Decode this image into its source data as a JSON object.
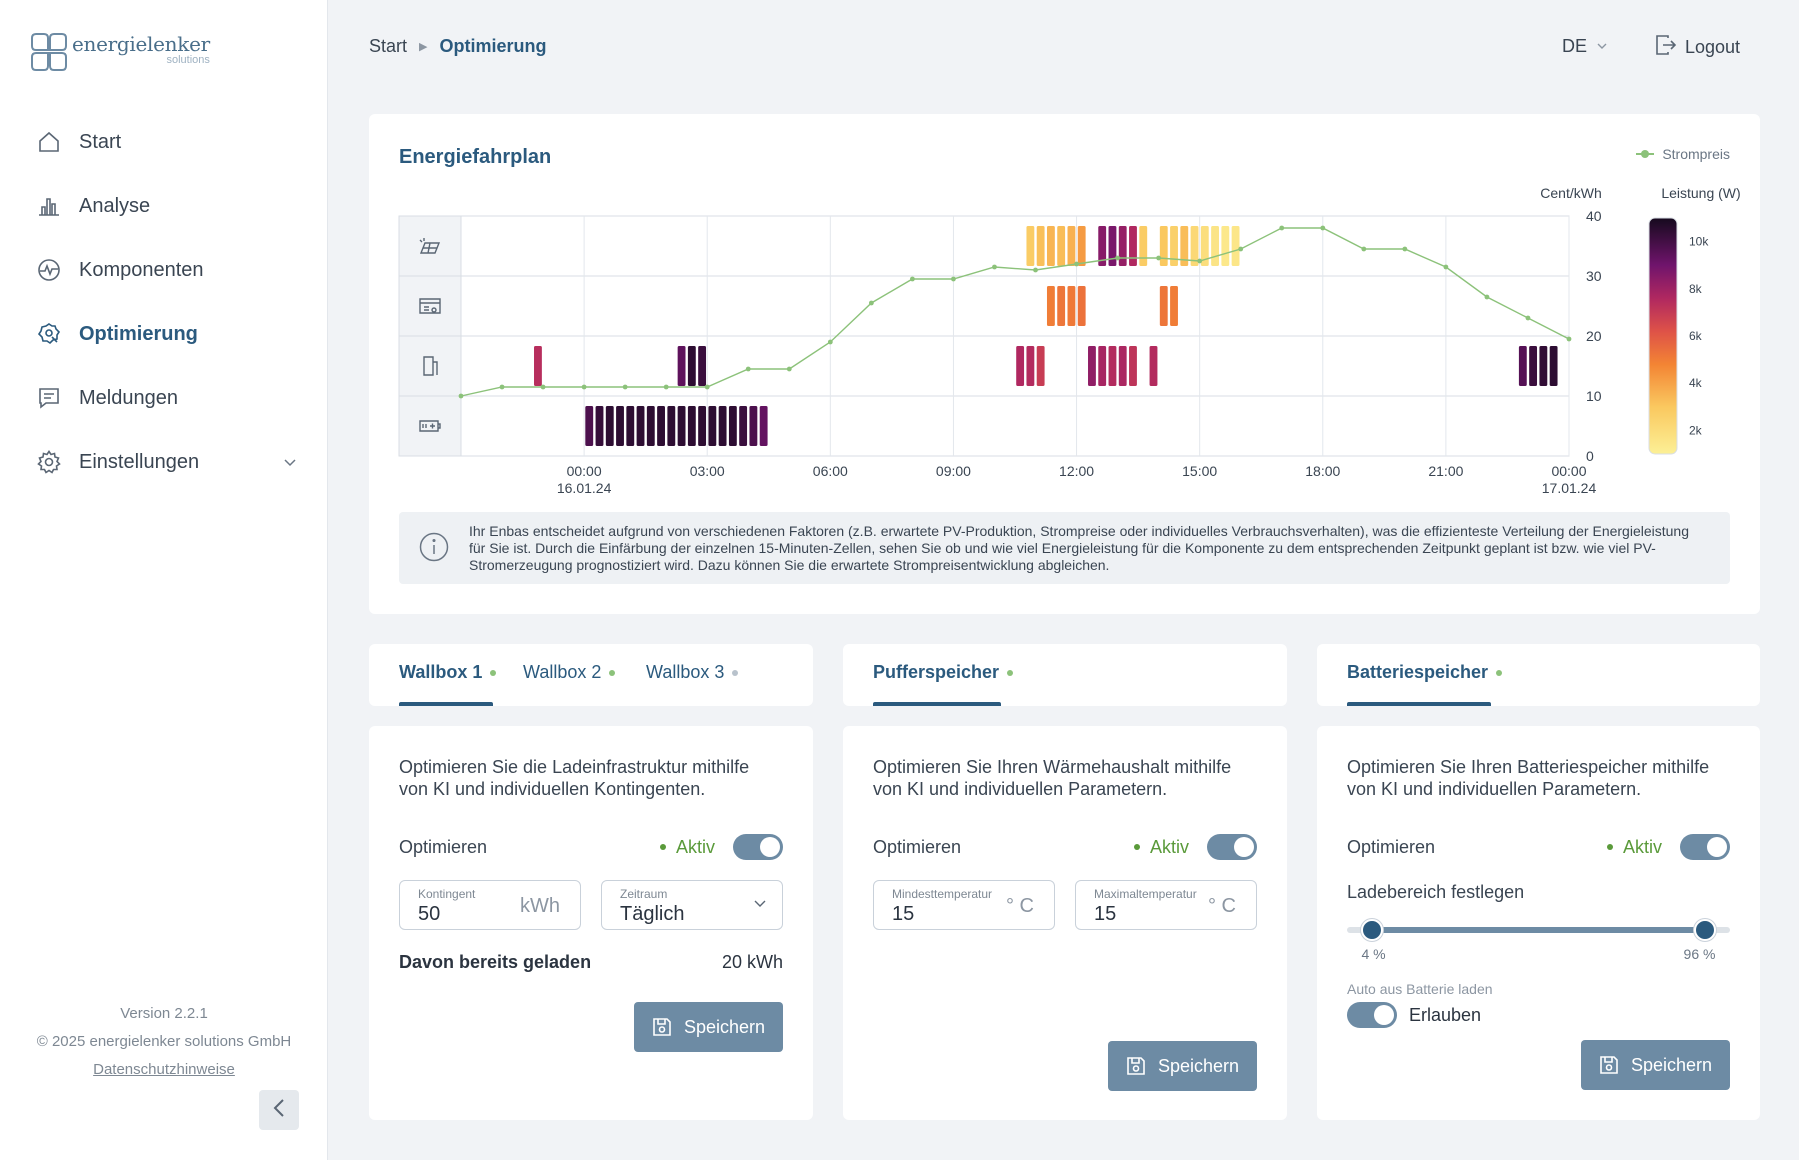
{
  "app": {
    "logo_name": "energielenker",
    "logo_sub": "solutions"
  },
  "sidebar": {
    "items": [
      {
        "label": "Start",
        "icon": "home-icon"
      },
      {
        "label": "Analyse",
        "icon": "bar-chart-icon"
      },
      {
        "label": "Komponenten",
        "icon": "pulse-icon"
      },
      {
        "label": "Optimierung",
        "icon": "gear-optimize-icon",
        "active": true
      },
      {
        "label": "Meldungen",
        "icon": "message-icon"
      },
      {
        "label": "Einstellungen",
        "icon": "settings-icon"
      }
    ],
    "version": "Version 2.2.1",
    "copyright": "© 2025 energielenker solutions GmbH",
    "privacy": "Datenschutzhinweise"
  },
  "header": {
    "breadcrumb": [
      "Start",
      "Optimierung"
    ],
    "language": "DE",
    "logout": "Logout"
  },
  "schedule": {
    "title": "Energiefahrplan",
    "legend_price": "Strompreis",
    "y_right_label": "Cent/kWh",
    "colorbar_label": "Leistung (W)",
    "info_text": "Ihr Enbas entscheidet aufgrund von verschiedenen Faktoren (z.B. erwartete PV-Produktion, Strompreise oder individuelles Verbrauchsverhalten), was die effizienteste Verteilung der Energieleistung für Sie ist. Durch die Einfärbung der einzelnen 15-Minuten-Zellen, sehen Sie ob und wie viel Energieleistung für die Komponente zu dem entsprechenden Zeitpunkt geplant ist bzw. wie viel PV-Stromerzeugung prognostiziert wird. Dazu können Sie die erwartete Strompreisentwicklung abgleichen."
  },
  "chart_data": {
    "type": "heatmap",
    "title": "Energiefahrplan",
    "rows": [
      "pv-production",
      "heat-storage",
      "wallbox",
      "battery"
    ],
    "row_icons": [
      "solar-panel-icon",
      "heat-buffer-icon",
      "wallbox-icon",
      "battery-icon"
    ],
    "x_hours_range": [
      -3,
      24
    ],
    "x_ticks": [
      {
        "h": 0,
        "label": "00:00",
        "sub": "16.01.24"
      },
      {
        "h": 3,
        "label": "03:00",
        "sub": ""
      },
      {
        "h": 6,
        "label": "06:00",
        "sub": ""
      },
      {
        "h": 9,
        "label": "09:00",
        "sub": ""
      },
      {
        "h": 12,
        "label": "12:00",
        "sub": ""
      },
      {
        "h": 15,
        "label": "15:00",
        "sub": ""
      },
      {
        "h": 18,
        "label": "18:00",
        "sub": ""
      },
      {
        "h": 21,
        "label": "21:00",
        "sub": ""
      },
      {
        "h": 24,
        "label": "00:00",
        "sub": "17.01.24"
      }
    ],
    "y_price_ticks": [
      0,
      10,
      20,
      30,
      40
    ],
    "ylim": [
      0,
      40
    ],
    "colorbar_ticks": [
      {
        "v": 10000,
        "label": "10k"
      },
      {
        "v": 8000,
        "label": "8k"
      },
      {
        "v": 6000,
        "label": "6k"
      },
      {
        "v": 4000,
        "label": "4k"
      },
      {
        "v": 2000,
        "label": "2k"
      }
    ],
    "colorbar_range": [
      1000,
      11000
    ],
    "price_series": {
      "name": "Strompreis",
      "x": [
        -3,
        -2,
        -1,
        0,
        1,
        2,
        3,
        4,
        5,
        6,
        7,
        8,
        9,
        10,
        11,
        12,
        13,
        14,
        15,
        16,
        17,
        18,
        19,
        20,
        21,
        22,
        23,
        24
      ],
      "y": [
        10,
        11.5,
        11.5,
        11.5,
        11.5,
        11.5,
        11.5,
        14.5,
        14.5,
        19,
        25.5,
        29.5,
        29.5,
        31.5,
        31,
        32,
        33,
        33,
        32.5,
        34.5,
        38,
        38,
        34.5,
        34.5,
        31.5,
        26.5,
        23,
        19.5
      ]
    },
    "cells": [
      {
        "row": 0,
        "start": 10.75,
        "count": 6,
        "values": [
          2800,
          3200,
          3500,
          3300,
          3600,
          4200
        ]
      },
      {
        "row": 0,
        "start": 12.5,
        "count": 4,
        "values": [
          8500,
          8800,
          8200,
          7600
        ]
      },
      {
        "row": 0,
        "start": 13.5,
        "count": 1,
        "values": [
          2800
        ]
      },
      {
        "row": 0,
        "start": 14.0,
        "count": 8,
        "values": [
          3000,
          2600,
          3300,
          2200,
          1900,
          1600,
          1400,
          1500
        ]
      },
      {
        "row": 1,
        "start": 11.25,
        "count": 4,
        "values": [
          5000,
          5200,
          5100,
          5300
        ]
      },
      {
        "row": 1,
        "start": 14.0,
        "count": 2,
        "values": [
          5200,
          5000
        ]
      },
      {
        "row": 2,
        "start": -1.25,
        "count": 1,
        "values": [
          7400
        ]
      },
      {
        "row": 2,
        "start": 2.25,
        "count": 3,
        "values": [
          9400,
          10500,
          10200
        ]
      },
      {
        "row": 2,
        "start": 10.5,
        "count": 3,
        "values": [
          7600,
          7500,
          6900
        ]
      },
      {
        "row": 2,
        "start": 12.25,
        "count": 5,
        "values": [
          8300,
          7800,
          7500,
          7700,
          7200
        ]
      },
      {
        "row": 2,
        "start": 13.75,
        "count": 1,
        "values": [
          7500
        ]
      },
      {
        "row": 2,
        "start": 22.75,
        "count": 4,
        "values": [
          9600,
          10200,
          10400,
          10500
        ]
      },
      {
        "row": 3,
        "start": 0,
        "count": 18,
        "values": [
          9800,
          10300,
          10500,
          10500,
          10500,
          10500,
          10500,
          10500,
          10500,
          10500,
          10500,
          10500,
          10500,
          10500,
          10500,
          10200,
          9800,
          9300
        ]
      }
    ]
  },
  "wallbox": {
    "tabs": [
      {
        "label": "Wallbox 1",
        "status": "#8cc27a"
      },
      {
        "label": "Wallbox 2",
        "status": "#8cc27a"
      },
      {
        "label": "Wallbox 3",
        "status": "#b8c2cc"
      }
    ],
    "description": "Optimieren Sie die Ladeinfrastruktur mithilfe von KI und individuellen Kontingenten.",
    "optimize_label": "Optimieren",
    "status": "Aktiv",
    "quota_label": "Kontingent",
    "quota_value": "50",
    "quota_unit": "kWh",
    "period_label": "Zeitraum",
    "period_value": "Täglich",
    "charged_label": "Davon bereits geladen",
    "charged_value": "20 kWh",
    "save": "Speichern"
  },
  "buffer": {
    "tab": "Pufferspeicher",
    "tab_status": "#8cc27a",
    "description": "Optimieren Sie Ihren Wärmehaushalt mithilfe von KI und individuellen Parametern.",
    "optimize_label": "Optimieren",
    "status": "Aktiv",
    "min_label": "Mindesttemperatur",
    "min_value": "15",
    "max_label": "Maximaltemperatur",
    "max_value": "15",
    "unit": "° C",
    "save": "Speichern"
  },
  "battery": {
    "tab": "Batteriespeicher",
    "tab_status": "#8cc27a",
    "description": "Optimieren Sie Ihren Batteriespeicher mithilfe von KI und individuellen Parametern.",
    "optimize_label": "Optimieren",
    "status": "Aktiv",
    "range_label": "Ladebereich festlegen",
    "range_min": 4,
    "range_max": 96,
    "range_min_label": "4 %",
    "range_max_label": "96 %",
    "auto_label": "Auto aus Batterie laden",
    "allow_label": "Erlauben",
    "save": "Speichern"
  }
}
